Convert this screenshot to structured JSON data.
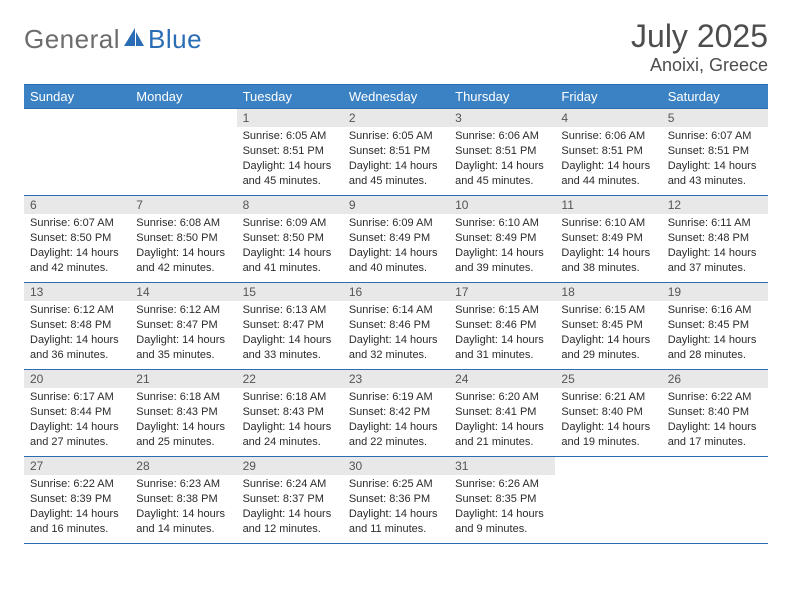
{
  "brand": {
    "name_part1": "General",
    "name_part2": "Blue"
  },
  "title": "July 2025",
  "location": "Anoixi, Greece",
  "headers": [
    "Sunday",
    "Monday",
    "Tuesday",
    "Wednesday",
    "Thursday",
    "Friday",
    "Saturday"
  ],
  "colors": {
    "header_bg": "#3b82c4",
    "border": "#2a6db5",
    "daynum_bg": "#e8e8e8"
  },
  "weeks": [
    [
      null,
      null,
      {
        "n": "1",
        "sunrise": "Sunrise: 6:05 AM",
        "sunset": "Sunset: 8:51 PM",
        "day1": "Daylight: 14 hours",
        "day2": "and 45 minutes."
      },
      {
        "n": "2",
        "sunrise": "Sunrise: 6:05 AM",
        "sunset": "Sunset: 8:51 PM",
        "day1": "Daylight: 14 hours",
        "day2": "and 45 minutes."
      },
      {
        "n": "3",
        "sunrise": "Sunrise: 6:06 AM",
        "sunset": "Sunset: 8:51 PM",
        "day1": "Daylight: 14 hours",
        "day2": "and 45 minutes."
      },
      {
        "n": "4",
        "sunrise": "Sunrise: 6:06 AM",
        "sunset": "Sunset: 8:51 PM",
        "day1": "Daylight: 14 hours",
        "day2": "and 44 minutes."
      },
      {
        "n": "5",
        "sunrise": "Sunrise: 6:07 AM",
        "sunset": "Sunset: 8:51 PM",
        "day1": "Daylight: 14 hours",
        "day2": "and 43 minutes."
      }
    ],
    [
      {
        "n": "6",
        "sunrise": "Sunrise: 6:07 AM",
        "sunset": "Sunset: 8:50 PM",
        "day1": "Daylight: 14 hours",
        "day2": "and 42 minutes."
      },
      {
        "n": "7",
        "sunrise": "Sunrise: 6:08 AM",
        "sunset": "Sunset: 8:50 PM",
        "day1": "Daylight: 14 hours",
        "day2": "and 42 minutes."
      },
      {
        "n": "8",
        "sunrise": "Sunrise: 6:09 AM",
        "sunset": "Sunset: 8:50 PM",
        "day1": "Daylight: 14 hours",
        "day2": "and 41 minutes."
      },
      {
        "n": "9",
        "sunrise": "Sunrise: 6:09 AM",
        "sunset": "Sunset: 8:49 PM",
        "day1": "Daylight: 14 hours",
        "day2": "and 40 minutes."
      },
      {
        "n": "10",
        "sunrise": "Sunrise: 6:10 AM",
        "sunset": "Sunset: 8:49 PM",
        "day1": "Daylight: 14 hours",
        "day2": "and 39 minutes."
      },
      {
        "n": "11",
        "sunrise": "Sunrise: 6:10 AM",
        "sunset": "Sunset: 8:49 PM",
        "day1": "Daylight: 14 hours",
        "day2": "and 38 minutes."
      },
      {
        "n": "12",
        "sunrise": "Sunrise: 6:11 AM",
        "sunset": "Sunset: 8:48 PM",
        "day1": "Daylight: 14 hours",
        "day2": "and 37 minutes."
      }
    ],
    [
      {
        "n": "13",
        "sunrise": "Sunrise: 6:12 AM",
        "sunset": "Sunset: 8:48 PM",
        "day1": "Daylight: 14 hours",
        "day2": "and 36 minutes."
      },
      {
        "n": "14",
        "sunrise": "Sunrise: 6:12 AM",
        "sunset": "Sunset: 8:47 PM",
        "day1": "Daylight: 14 hours",
        "day2": "and 35 minutes."
      },
      {
        "n": "15",
        "sunrise": "Sunrise: 6:13 AM",
        "sunset": "Sunset: 8:47 PM",
        "day1": "Daylight: 14 hours",
        "day2": "and 33 minutes."
      },
      {
        "n": "16",
        "sunrise": "Sunrise: 6:14 AM",
        "sunset": "Sunset: 8:46 PM",
        "day1": "Daylight: 14 hours",
        "day2": "and 32 minutes."
      },
      {
        "n": "17",
        "sunrise": "Sunrise: 6:15 AM",
        "sunset": "Sunset: 8:46 PM",
        "day1": "Daylight: 14 hours",
        "day2": "and 31 minutes."
      },
      {
        "n": "18",
        "sunrise": "Sunrise: 6:15 AM",
        "sunset": "Sunset: 8:45 PM",
        "day1": "Daylight: 14 hours",
        "day2": "and 29 minutes."
      },
      {
        "n": "19",
        "sunrise": "Sunrise: 6:16 AM",
        "sunset": "Sunset: 8:45 PM",
        "day1": "Daylight: 14 hours",
        "day2": "and 28 minutes."
      }
    ],
    [
      {
        "n": "20",
        "sunrise": "Sunrise: 6:17 AM",
        "sunset": "Sunset: 8:44 PM",
        "day1": "Daylight: 14 hours",
        "day2": "and 27 minutes."
      },
      {
        "n": "21",
        "sunrise": "Sunrise: 6:18 AM",
        "sunset": "Sunset: 8:43 PM",
        "day1": "Daylight: 14 hours",
        "day2": "and 25 minutes."
      },
      {
        "n": "22",
        "sunrise": "Sunrise: 6:18 AM",
        "sunset": "Sunset: 8:43 PM",
        "day1": "Daylight: 14 hours",
        "day2": "and 24 minutes."
      },
      {
        "n": "23",
        "sunrise": "Sunrise: 6:19 AM",
        "sunset": "Sunset: 8:42 PM",
        "day1": "Daylight: 14 hours",
        "day2": "and 22 minutes."
      },
      {
        "n": "24",
        "sunrise": "Sunrise: 6:20 AM",
        "sunset": "Sunset: 8:41 PM",
        "day1": "Daylight: 14 hours",
        "day2": "and 21 minutes."
      },
      {
        "n": "25",
        "sunrise": "Sunrise: 6:21 AM",
        "sunset": "Sunset: 8:40 PM",
        "day1": "Daylight: 14 hours",
        "day2": "and 19 minutes."
      },
      {
        "n": "26",
        "sunrise": "Sunrise: 6:22 AM",
        "sunset": "Sunset: 8:40 PM",
        "day1": "Daylight: 14 hours",
        "day2": "and 17 minutes."
      }
    ],
    [
      {
        "n": "27",
        "sunrise": "Sunrise: 6:22 AM",
        "sunset": "Sunset: 8:39 PM",
        "day1": "Daylight: 14 hours",
        "day2": "and 16 minutes."
      },
      {
        "n": "28",
        "sunrise": "Sunrise: 6:23 AM",
        "sunset": "Sunset: 8:38 PM",
        "day1": "Daylight: 14 hours",
        "day2": "and 14 minutes."
      },
      {
        "n": "29",
        "sunrise": "Sunrise: 6:24 AM",
        "sunset": "Sunset: 8:37 PM",
        "day1": "Daylight: 14 hours",
        "day2": "and 12 minutes."
      },
      {
        "n": "30",
        "sunrise": "Sunrise: 6:25 AM",
        "sunset": "Sunset: 8:36 PM",
        "day1": "Daylight: 14 hours",
        "day2": "and 11 minutes."
      },
      {
        "n": "31",
        "sunrise": "Sunrise: 6:26 AM",
        "sunset": "Sunset: 8:35 PM",
        "day1": "Daylight: 14 hours",
        "day2": "and 9 minutes."
      },
      null,
      null
    ]
  ]
}
